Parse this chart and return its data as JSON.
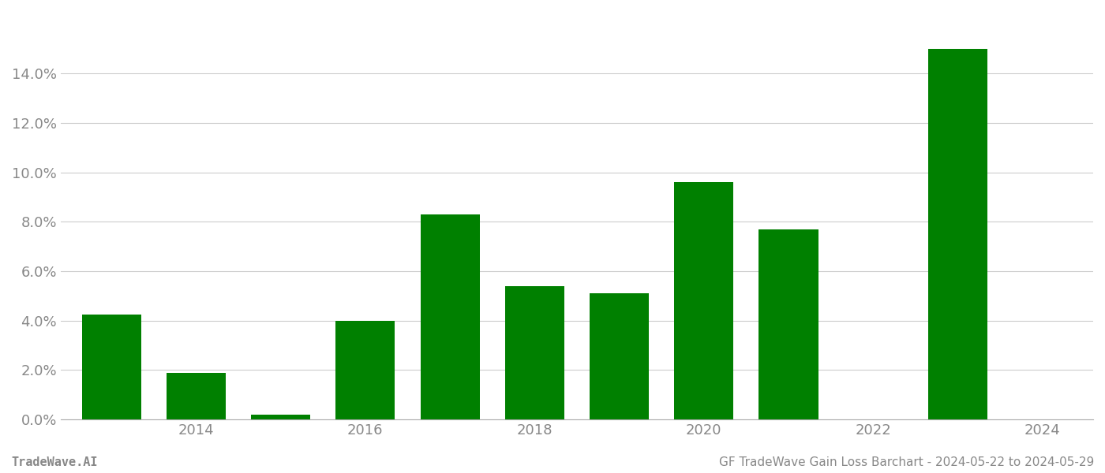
{
  "years": [
    2013,
    2014,
    2015,
    2016,
    2017,
    2018,
    2019,
    2020,
    2021,
    2022,
    2023
  ],
  "values": [
    0.0425,
    0.019,
    0.002,
    0.04,
    0.083,
    0.054,
    0.051,
    0.096,
    0.077,
    0.0,
    0.15
  ],
  "bar_color": "#008000",
  "background_color": "#ffffff",
  "grid_color": "#cccccc",
  "tick_label_color": "#888888",
  "ylim": [
    0,
    0.165
  ],
  "yticks": [
    0.0,
    0.02,
    0.04,
    0.06,
    0.08,
    0.1,
    0.12,
    0.14
  ],
  "xtick_positions": [
    2014,
    2016,
    2018,
    2020,
    2022,
    2024
  ],
  "xtick_labels": [
    "2014",
    "2016",
    "2018",
    "2020",
    "2022",
    "2024"
  ],
  "xlim": [
    2012.4,
    2024.6
  ],
  "footer_left": "TradeWave.AI",
  "footer_right": "GF TradeWave Gain Loss Barchart - 2024-05-22 to 2024-05-29",
  "footer_fontsize": 11,
  "tick_fontsize": 13,
  "bar_width": 0.7,
  "spine_color": "#aaaaaa"
}
